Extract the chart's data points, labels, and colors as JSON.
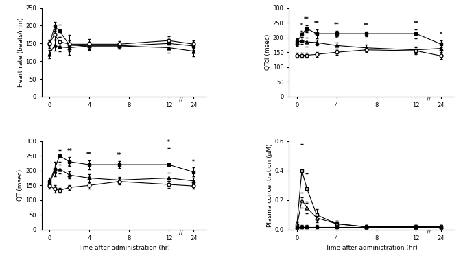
{
  "time_main": [
    0,
    0.5,
    1,
    2,
    4,
    7,
    12,
    24
  ],
  "hr_vehicle": [
    150,
    175,
    155,
    148,
    148,
    148,
    158,
    148
  ],
  "hr_vehicle_err": [
    10,
    15,
    12,
    10,
    15,
    8,
    12,
    10
  ],
  "hr_10mg": [
    120,
    145,
    140,
    138,
    143,
    143,
    138,
    128
  ],
  "hr_10mg_err": [
    12,
    15,
    12,
    10,
    12,
    8,
    15,
    15
  ],
  "hr_30mg": [
    148,
    198,
    185,
    145,
    143,
    143,
    150,
    143
  ],
  "hr_30mg_err": [
    10,
    12,
    18,
    28,
    12,
    8,
    12,
    12
  ],
  "qt_vehicle": [
    148,
    138,
    133,
    143,
    150,
    163,
    153,
    148
  ],
  "qt_vehicle_err": [
    10,
    12,
    8,
    8,
    10,
    10,
    12,
    10
  ],
  "qt_10mg": [
    158,
    198,
    205,
    185,
    175,
    168,
    175,
    165
  ],
  "qt_10mg_err": [
    12,
    15,
    15,
    12,
    12,
    10,
    18,
    12
  ],
  "qt_30mg": [
    163,
    205,
    250,
    230,
    220,
    220,
    220,
    195
  ],
  "qt_30mg_err": [
    12,
    25,
    20,
    15,
    15,
    12,
    55,
    15
  ],
  "qtci_vehicle": [
    140,
    140,
    140,
    143,
    150,
    158,
    155,
    138
  ],
  "qtci_vehicle_err": [
    8,
    8,
    8,
    8,
    8,
    8,
    12,
    10
  ],
  "qtci_10mg": [
    183,
    190,
    185,
    183,
    173,
    165,
    158,
    163
  ],
  "qtci_10mg_err": [
    12,
    12,
    15,
    10,
    10,
    10,
    12,
    12
  ],
  "qtci_30mg": [
    185,
    210,
    230,
    213,
    213,
    213,
    213,
    178
  ],
  "qtci_30mg_err": [
    12,
    10,
    12,
    15,
    10,
    8,
    15,
    12
  ],
  "plasma_vehicle": [
    0.02,
    0.02,
    0.02,
    0.02,
    0.02,
    0.02,
    0.02,
    0.02
  ],
  "plasma_vehicle_err": [
    0.01,
    0.01,
    0.01,
    0.01,
    0.01,
    0.01,
    0.01,
    0.01
  ],
  "plasma_10mg": [
    0.02,
    0.2,
    0.15,
    0.08,
    0.04,
    0.02,
    0.02,
    0.02
  ],
  "plasma_10mg_err": [
    0.01,
    0.05,
    0.04,
    0.03,
    0.02,
    0.01,
    0.01,
    0.01
  ],
  "plasma_30mg": [
    0.03,
    0.4,
    0.28,
    0.1,
    0.04,
    0.02,
    0.02,
    0.02
  ],
  "plasma_30mg_err": [
    0.02,
    0.18,
    0.1,
    0.04,
    0.02,
    0.01,
    0.01,
    0.01
  ],
  "hr_ylim": [
    0,
    250
  ],
  "qt_ylim": [
    0,
    300
  ],
  "qtci_ylim": [
    0,
    300
  ],
  "plasma_ylim": [
    0,
    0.6
  ],
  "hr_yticks": [
    0,
    50,
    100,
    150,
    200,
    250
  ],
  "qt_yticks": [
    0,
    50,
    100,
    150,
    200,
    250,
    300
  ],
  "qtci_yticks": [
    0,
    50,
    100,
    150,
    200,
    250,
    300
  ],
  "plasma_yticks": [
    0.0,
    0.2,
    0.4,
    0.6
  ],
  "qt_annot_sq_times": [
    2,
    4,
    7,
    12,
    24
  ],
  "qt_annot_sq_labels": [
    "**",
    "**",
    "**",
    "*",
    "*"
  ],
  "qt_annot_tr_times": [
    2
  ],
  "qt_annot_tr_labels": [
    "*"
  ],
  "qtci_annot_sq_times": [
    0.5,
    1,
    2,
    4,
    7,
    12,
    24
  ],
  "qtci_annot_sq_labels": [
    "*",
    "**",
    "**",
    "**",
    "**",
    "**",
    "*"
  ],
  "qtci_annot_tr_times": [
    0.5,
    1,
    2,
    4
  ],
  "qtci_annot_tr_labels": [
    "*",
    "**",
    "**",
    "*"
  ]
}
